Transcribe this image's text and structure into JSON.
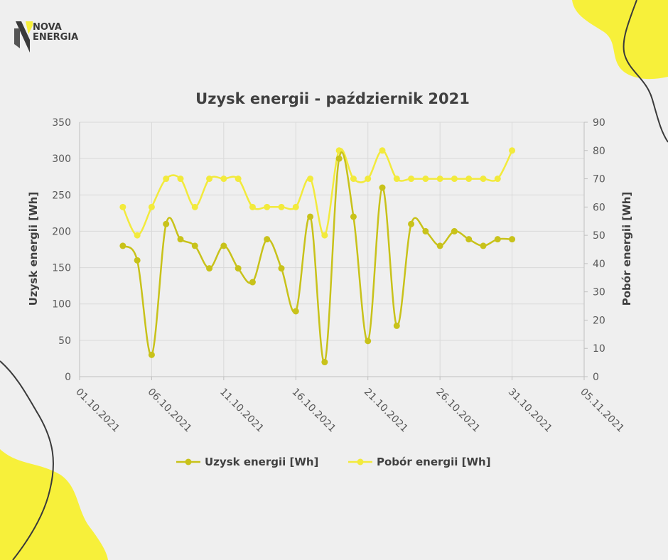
{
  "brand": {
    "logo_line1": "NOVA",
    "logo_line2": "ENERGIA"
  },
  "colors": {
    "background": "#efefef",
    "accent_yellow": "#f7f03a",
    "series_energy_gain": "#c8c21a",
    "series_energy_draw": "#f2ea3c",
    "grid": "#d9d9d9",
    "text": "#404040"
  },
  "chart_data": {
    "type": "line",
    "title": "Uzysk energii - październik 2021",
    "xlabel": "",
    "ylabel_left": "Uzysk energii [Wh]",
    "ylabel_right": "Pobór energii [Wh]",
    "x_ticks": [
      "01.10.2021",
      "06.10.2021",
      "11.10.2021",
      "16.10.2021",
      "21.10.2021",
      "26.10.2021",
      "31.10.2021",
      "05.11.2021"
    ],
    "xlim": [
      "01.10.2021",
      "05.11.2021"
    ],
    "ylim_left": [
      0,
      350
    ],
    "yticks_left": [
      0,
      50,
      100,
      150,
      200,
      250,
      300,
      350
    ],
    "ylim_right": [
      0,
      90
    ],
    "yticks_right": [
      0,
      10,
      20,
      30,
      40,
      50,
      60,
      70,
      80,
      90
    ],
    "grid": true,
    "smoothed": true,
    "legend_position": "bottom",
    "x": [
      "04.10.2021",
      "05.10.2021",
      "06.10.2021",
      "07.10.2021",
      "08.10.2021",
      "09.10.2021",
      "10.10.2021",
      "11.10.2021",
      "12.10.2021",
      "13.10.2021",
      "14.10.2021",
      "15.10.2021",
      "16.10.2021",
      "17.10.2021",
      "18.10.2021",
      "19.10.2021",
      "20.10.2021",
      "21.10.2021",
      "22.10.2021",
      "23.10.2021",
      "24.10.2021",
      "25.10.2021",
      "26.10.2021",
      "27.10.2021",
      "28.10.2021",
      "29.10.2021",
      "30.10.2021",
      "31.10.2021"
    ],
    "series": [
      {
        "name": "Uzysk energii [Wh]",
        "axis": "left",
        "values": [
          180,
          160,
          30,
          210,
          189,
          180,
          149,
          180,
          149,
          130,
          189,
          149,
          90,
          220,
          20,
          300,
          220,
          49,
          260,
          70,
          210,
          200,
          180,
          200,
          189,
          180,
          189,
          189
        ]
      },
      {
        "name": "Pobór energii [Wh]",
        "axis": "right",
        "values": [
          60,
          50,
          60,
          70,
          70,
          60,
          70,
          70,
          70,
          60,
          60,
          60,
          60,
          70,
          50,
          80,
          70,
          70,
          80,
          70,
          70,
          70,
          70,
          70,
          70,
          70,
          70,
          80
        ]
      }
    ]
  }
}
